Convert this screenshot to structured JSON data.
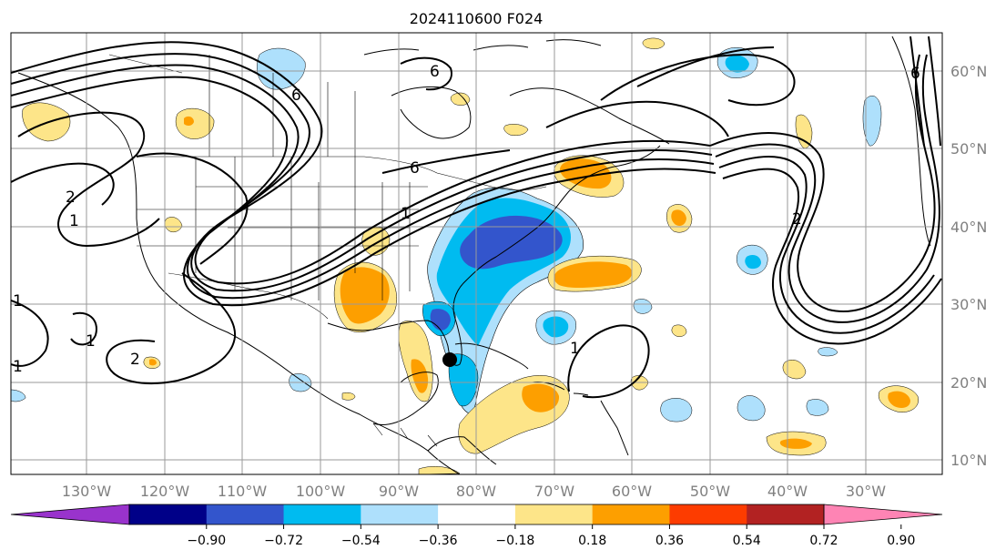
{
  "title": "2024110600 F024",
  "lon_labels": [
    "130°W",
    "120°W",
    "110°W",
    "100°W",
    "90°W",
    "80°W",
    "70°W",
    "60°W",
    "50°W",
    "40°W",
    "30°W"
  ],
  "lat_labels": [
    "60°N",
    "50°N",
    "40°N",
    "30°N",
    "20°N",
    "10°N"
  ],
  "contour_labels": [
    "6",
    "6",
    "6",
    "1",
    "2",
    "1",
    "1",
    "2",
    "1",
    "1",
    "1",
    "2",
    "6"
  ],
  "colorbar": {
    "colors": [
      "#9933cc",
      "#000088",
      "#3355cc",
      "#00bbf0",
      "#aee0fc",
      "#ffffff",
      "#fde589",
      "#fd9f00",
      "#fd3c00",
      "#b22222",
      "#fe84b4"
    ],
    "tick_labels": [
      "−0.90",
      "−0.72",
      "−0.54",
      "−0.36",
      "−0.18",
      "0.18",
      "0.36",
      "0.54",
      "0.72",
      "0.90"
    ]
  },
  "marker": "storm-center-dot"
}
